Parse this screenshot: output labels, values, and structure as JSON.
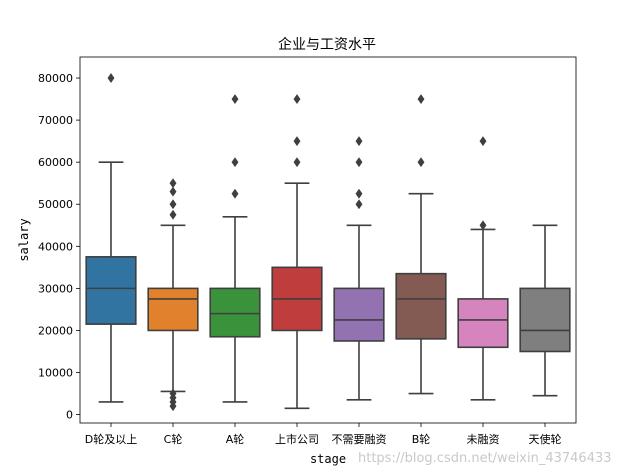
{
  "chart_data": {
    "type": "box",
    "title": "企业与工资水平",
    "xlabel": "stage",
    "ylabel": "salary",
    "ylim": [
      -2000,
      85000
    ],
    "yticks": [
      0,
      10000,
      20000,
      30000,
      40000,
      50000,
      60000,
      70000,
      80000
    ],
    "ytick_labels": [
      "0",
      "10000",
      "20000",
      "30000",
      "40000",
      "50000",
      "60000",
      "70000",
      "80000"
    ],
    "grid": false,
    "categories": [
      "D轮及以上",
      "C轮",
      "A轮",
      "上市公司",
      "不需要融资",
      "B轮",
      "未融资",
      "天使轮"
    ],
    "boxes": [
      {
        "category": "D轮及以上",
        "whisker_low": 3000,
        "q1": 21500,
        "median": 30000,
        "q3": 37500,
        "whisker_high": 60000,
        "outliers": [
          80000
        ],
        "color": "#3274a1"
      },
      {
        "category": "C轮",
        "whisker_low": 5500,
        "q1": 20000,
        "median": 27500,
        "q3": 30000,
        "whisker_high": 45000,
        "outliers": [
          2000,
          3000,
          4000,
          5000,
          47500,
          50000,
          53000,
          55000
        ],
        "color": "#e1812c"
      },
      {
        "category": "A轮",
        "whisker_low": 3000,
        "q1": 18500,
        "median": 24000,
        "q3": 30000,
        "whisker_high": 47000,
        "outliers": [
          52500,
          60000,
          75000
        ],
        "color": "#3a923a"
      },
      {
        "category": "上市公司",
        "whisker_low": 1500,
        "q1": 20000,
        "median": 27500,
        "q3": 35000,
        "whisker_high": 55000,
        "outliers": [
          60000,
          65000,
          75000
        ],
        "color": "#c03d3e"
      },
      {
        "category": "不需要融资",
        "whisker_low": 3500,
        "q1": 17500,
        "median": 22500,
        "q3": 30000,
        "whisker_high": 45000,
        "outliers": [
          50000,
          52500,
          60000,
          65000
        ],
        "color": "#9372b2"
      },
      {
        "category": "B轮",
        "whisker_low": 5000,
        "q1": 18000,
        "median": 27500,
        "q3": 33500,
        "whisker_high": 52500,
        "outliers": [
          60000,
          75000
        ],
        "color": "#845b53"
      },
      {
        "category": "未融资",
        "whisker_low": 3500,
        "q1": 16000,
        "median": 22500,
        "q3": 27500,
        "whisker_high": 44000,
        "outliers": [
          45000,
          65000
        ],
        "color": "#d684bd"
      },
      {
        "category": "天使轮",
        "whisker_low": 4500,
        "q1": 15000,
        "median": 20000,
        "q3": 30000,
        "whisker_high": 45000,
        "outliers": [],
        "color": "#7f7f7f"
      }
    ]
  },
  "watermark": "https://blog.csdn.net/weixin_43746433"
}
